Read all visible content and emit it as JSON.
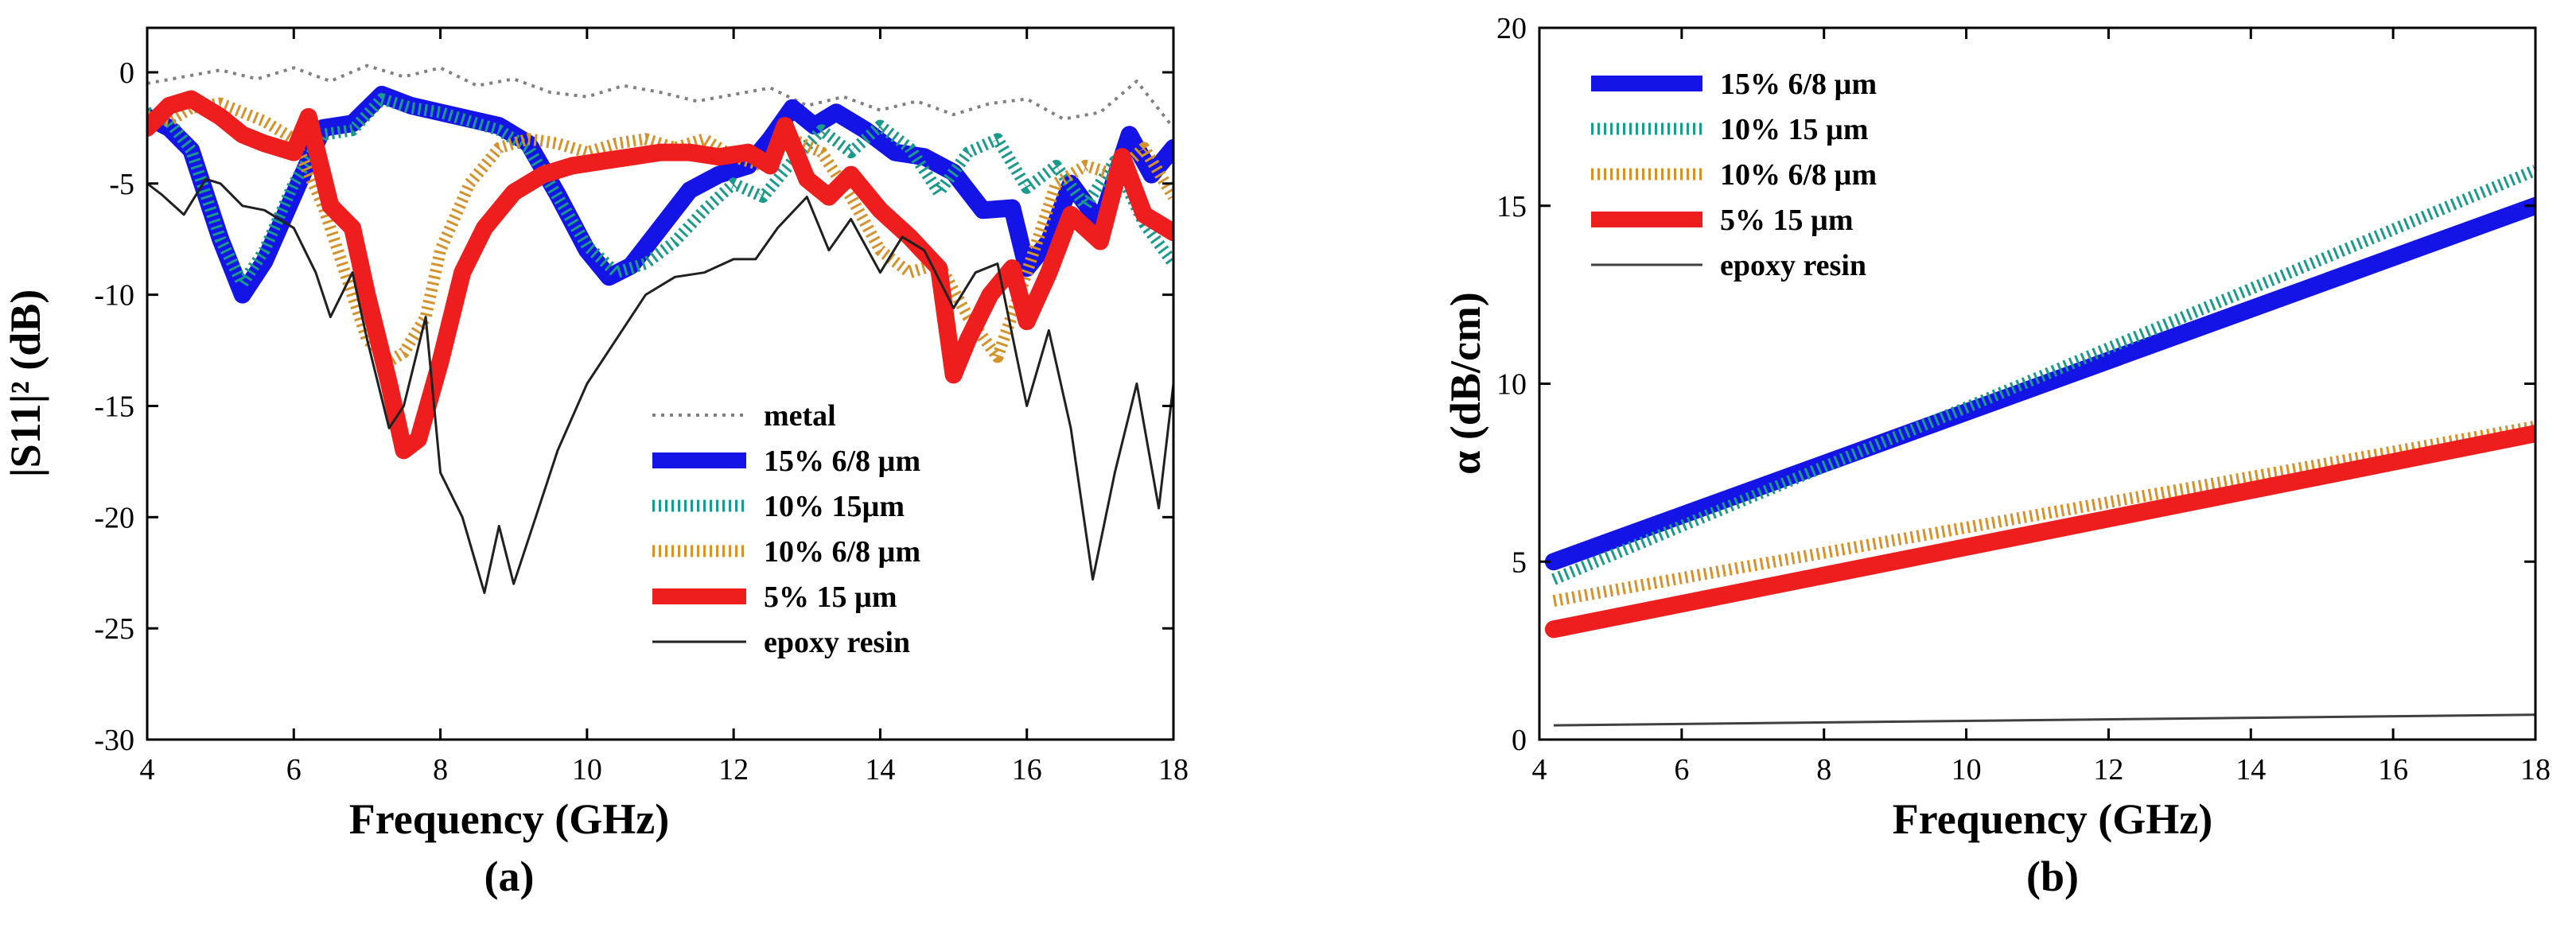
{
  "chart_data": [
    {
      "type": "line",
      "panel_label": "(a)",
      "title": "",
      "xlabel": "Frequency (GHz)",
      "ylabel": "|S11|² (dB)",
      "xlim": [
        4,
        18
      ],
      "ylim": [
        -30,
        2
      ],
      "xticks": [
        4,
        6,
        8,
        10,
        12,
        14,
        16,
        18
      ],
      "yticks": [
        -30,
        -25,
        -20,
        -15,
        -10,
        -5,
        0
      ],
      "legend_position": "bottom-right",
      "grid": false,
      "series": [
        {
          "name": "metal",
          "color": "#808080",
          "style": "dotted",
          "x": [
            4,
            4.5,
            5,
            5.5,
            6,
            6.5,
            7,
            7.5,
            8,
            8.5,
            9,
            9.5,
            10,
            10.5,
            11,
            11.5,
            12,
            12.5,
            13,
            13.5,
            14,
            14.5,
            15,
            15.5,
            16,
            16.5,
            17,
            17.5,
            18
          ],
          "y": [
            -0.5,
            -0.2,
            0.1,
            -0.3,
            0.2,
            -0.4,
            0.3,
            -0.2,
            0.2,
            -0.6,
            -0.3,
            -0.9,
            -1.1,
            -0.6,
            -0.9,
            -1.3,
            -1.0,
            -0.7,
            -1.5,
            -1.1,
            -1.7,
            -1.3,
            -1.9,
            -1.4,
            -1.2,
            -2.1,
            -1.8,
            -0.4,
            -2.5
          ]
        },
        {
          "name": "15% 6/8 µm",
          "color": "#1414e6",
          "style": "solid-thick",
          "x": [
            4,
            4.3,
            4.6,
            5,
            5.3,
            5.6,
            6,
            6.4,
            6.8,
            7.2,
            7.6,
            8,
            8.4,
            8.8,
            9.2,
            9.6,
            10,
            10.3,
            10.6,
            11,
            11.4,
            11.8,
            12.2,
            12.5,
            12.8,
            13.1,
            13.4,
            13.8,
            14.2,
            14.6,
            15,
            15.4,
            15.8,
            16,
            16.3,
            16.6,
            17,
            17.4,
            17.7,
            18
          ],
          "y": [
            -2.0,
            -2.5,
            -3.5,
            -7.5,
            -10.0,
            -8.5,
            -5.5,
            -2.5,
            -2.3,
            -1.0,
            -1.5,
            -1.8,
            -2.1,
            -2.4,
            -3.2,
            -5.5,
            -8.0,
            -9.2,
            -8.7,
            -7.0,
            -5.3,
            -4.6,
            -4.2,
            -3.0,
            -1.6,
            -2.4,
            -1.8,
            -2.6,
            -3.6,
            -3.8,
            -4.5,
            -6.2,
            -6.1,
            -8.8,
            -7.6,
            -5.0,
            -6.8,
            -2.8,
            -4.6,
            -3.4
          ]
        },
        {
          "name": "10% 15µm",
          "color": "#1a9a8a",
          "style": "dotted-thick",
          "x": [
            4,
            4.3,
            4.6,
            5,
            5.3,
            5.6,
            6,
            6.4,
            6.8,
            7.2,
            7.6,
            8,
            8.4,
            8.8,
            9.2,
            9.6,
            10,
            10.4,
            10.8,
            11.2,
            11.6,
            12,
            12.4,
            12.8,
            13.2,
            13.6,
            14,
            14.4,
            14.8,
            15.2,
            15.6,
            16,
            16.4,
            16.8,
            17.2,
            17.6,
            18
          ],
          "y": [
            -1.8,
            -2.2,
            -3.5,
            -7.5,
            -9.5,
            -8.0,
            -5.0,
            -2.8,
            -2.6,
            -1.2,
            -1.6,
            -1.8,
            -2.2,
            -2.6,
            -3.4,
            -5.6,
            -7.8,
            -9.0,
            -8.6,
            -7.6,
            -6.2,
            -5.0,
            -5.6,
            -4.0,
            -2.6,
            -3.6,
            -2.4,
            -3.4,
            -5.4,
            -3.6,
            -3.0,
            -5.2,
            -4.2,
            -6.0,
            -4.0,
            -6.8,
            -8.6
          ]
        },
        {
          "name": "10% 6/8 µm",
          "color": "#d4922a",
          "style": "dotted-thick",
          "x": [
            4,
            4.3,
            4.6,
            5,
            5.3,
            5.6,
            6,
            6.4,
            6.8,
            7,
            7.3,
            7.5,
            7.8,
            8,
            8.4,
            8.8,
            9.2,
            9.6,
            10,
            10.4,
            10.8,
            11.2,
            11.6,
            12,
            12.4,
            12.8,
            13.2,
            13.6,
            14,
            14.4,
            14.8,
            15.2,
            15.6,
            16,
            16.4,
            16.8,
            17.2,
            17.6,
            18
          ],
          "y": [
            -2.0,
            -2.2,
            -1.6,
            -1.4,
            -1.8,
            -2.2,
            -3.0,
            -6.0,
            -10.0,
            -12.0,
            -13.0,
            -12.6,
            -11.0,
            -8.0,
            -5.0,
            -3.4,
            -3.0,
            -3.2,
            -3.6,
            -3.2,
            -3.0,
            -3.4,
            -3.0,
            -3.8,
            -4.2,
            -3.0,
            -3.6,
            -5.6,
            -8.0,
            -9.0,
            -8.6,
            -11.0,
            -12.8,
            -9.0,
            -5.0,
            -4.2,
            -4.6,
            -3.4,
            -5.6
          ]
        },
        {
          "name": "5% 15 µm",
          "color": "#ee1e1e",
          "style": "solid-thick",
          "x": [
            4,
            4.3,
            4.6,
            5,
            5.3,
            5.6,
            6,
            6.2,
            6.5,
            6.8,
            7,
            7.3,
            7.5,
            7.7,
            8,
            8.3,
            8.6,
            9,
            9.4,
            9.8,
            10.2,
            10.6,
            11,
            11.4,
            11.8,
            12.2,
            12.5,
            12.7,
            13,
            13.3,
            13.6,
            14,
            14.4,
            14.8,
            15,
            15.2,
            15.5,
            15.8,
            16,
            16.3,
            16.6,
            17,
            17.3,
            17.6,
            18
          ],
          "y": [
            -2.5,
            -1.5,
            -1.2,
            -2.0,
            -2.8,
            -3.2,
            -3.6,
            -2.0,
            -6.0,
            -7.0,
            -10.0,
            -14.0,
            -17.0,
            -16.5,
            -13.0,
            -9.0,
            -7.0,
            -5.4,
            -4.6,
            -4.2,
            -4.0,
            -3.8,
            -3.6,
            -3.6,
            -3.8,
            -3.6,
            -4.2,
            -2.4,
            -4.8,
            -5.6,
            -4.6,
            -6.2,
            -7.4,
            -8.8,
            -13.6,
            -12.0,
            -10.0,
            -8.8,
            -11.2,
            -9.0,
            -6.4,
            -7.6,
            -3.8,
            -6.4,
            -7.2
          ]
        },
        {
          "name": "epoxy resin",
          "color": "#202020",
          "style": "solid-thin",
          "x": [
            4,
            4.2,
            4.5,
            4.8,
            5,
            5.3,
            5.6,
            6,
            6.3,
            6.5,
            6.8,
            7,
            7.3,
            7.5,
            7.8,
            8,
            8.3,
            8.6,
            8.8,
            9,
            9.3,
            9.6,
            10,
            10.4,
            10.8,
            11.2,
            11.6,
            12,
            12.3,
            12.6,
            13,
            13.3,
            13.6,
            14,
            14.3,
            14.6,
            15,
            15.3,
            15.6,
            16,
            16.3,
            16.6,
            16.9,
            17.2,
            17.5,
            17.8,
            18
          ],
          "y": [
            -5.0,
            -5.5,
            -6.4,
            -4.8,
            -5.0,
            -6.0,
            -6.2,
            -7.0,
            -9.0,
            -11.0,
            -9.0,
            -12.0,
            -16.0,
            -15.0,
            -11.0,
            -18.0,
            -20.0,
            -23.4,
            -20.4,
            -23.0,
            -20.0,
            -17.0,
            -14.0,
            -12.0,
            -10.0,
            -9.2,
            -9.0,
            -8.4,
            -8.4,
            -7.0,
            -5.6,
            -8.0,
            -6.6,
            -9.0,
            -7.4,
            -8.0,
            -10.6,
            -9.0,
            -8.6,
            -15.0,
            -11.6,
            -16.0,
            -22.8,
            -18.0,
            -14.0,
            -19.6,
            -14.0
          ]
        }
      ]
    },
    {
      "type": "line",
      "panel_label": "(b)",
      "title": "",
      "xlabel": "Frequency (GHz)",
      "ylabel": "α (dB/cm)",
      "xlim": [
        4,
        18
      ],
      "ylim": [
        0,
        20
      ],
      "xticks": [
        4,
        6,
        8,
        10,
        12,
        14,
        16,
        18
      ],
      "yticks": [
        0,
        5,
        10,
        15,
        20
      ],
      "legend_position": "top-left",
      "grid": false,
      "series": [
        {
          "name": "15% 6/8 µm",
          "color": "#1414e6",
          "style": "solid-thick",
          "x": [
            4.2,
            18
          ],
          "y": [
            5.0,
            15.0
          ]
        },
        {
          "name": "10% 15 µm",
          "color": "#1a9a8a",
          "style": "dotted-thick",
          "x": [
            4.2,
            18
          ],
          "y": [
            4.5,
            16.0
          ]
        },
        {
          "name": "10% 6/8 µm",
          "color": "#d4922a",
          "style": "dotted-thick",
          "x": [
            4.2,
            18
          ],
          "y": [
            3.9,
            8.8
          ]
        },
        {
          "name": "5% 15 µm",
          "color": "#ee1e1e",
          "style": "solid-thick",
          "x": [
            4.2,
            18
          ],
          "y": [
            3.1,
            8.6
          ]
        },
        {
          "name": "epoxy resin",
          "color": "#404040",
          "style": "solid-thin",
          "x": [
            4.2,
            18
          ],
          "y": [
            0.4,
            0.7
          ]
        }
      ]
    }
  ]
}
